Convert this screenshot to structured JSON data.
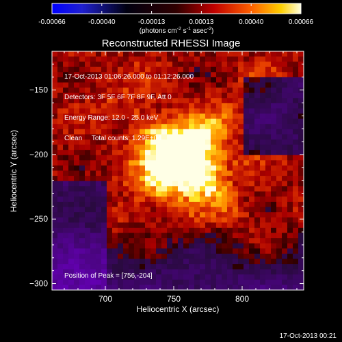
{
  "chart_data": {
    "type": "heatmap",
    "title": "Reconstructed RHESSI Image",
    "xlabel": "Heliocentric X (arcsec)",
    "ylabel": "Heliocentric Y (arcsec)",
    "xlim": [
      661,
      845
    ],
    "ylim": [
      -305,
      -120
    ],
    "xticks": [
      700,
      750,
      800
    ],
    "yticks": [
      -150,
      -200,
      -250,
      -300
    ],
    "colorbar": {
      "ticks": [
        "-0.00066",
        "-0.00040",
        "-0.00013",
        "0.00013",
        "0.00040",
        "0.00066"
      ],
      "unit_prefix": "(photons cm",
      "unit_exp1": "-2",
      "unit_mid": " s",
      "unit_exp2": "-1",
      "unit_mid2": " asec",
      "unit_exp3": "-2",
      "unit_suffix": ")",
      "range": [
        -0.00066,
        0.00066
      ]
    },
    "peak": {
      "x": 756,
      "y": -204
    },
    "grid": false
  },
  "overlay": {
    "time_range": "17-Oct-2013 01:06:26.000 to 01:12:26.000",
    "detectors": "Detectors: 3F 5F 6F 7F 8F 9F, Att 0",
    "energy": "Energy Range: 12.0 - 25.0 keV",
    "clean": "Clean     Total counts: 1.29E+04",
    "peak_label": "Position of Peak = [756,-204]"
  },
  "timestamp": "17-Oct-2013 00:21"
}
